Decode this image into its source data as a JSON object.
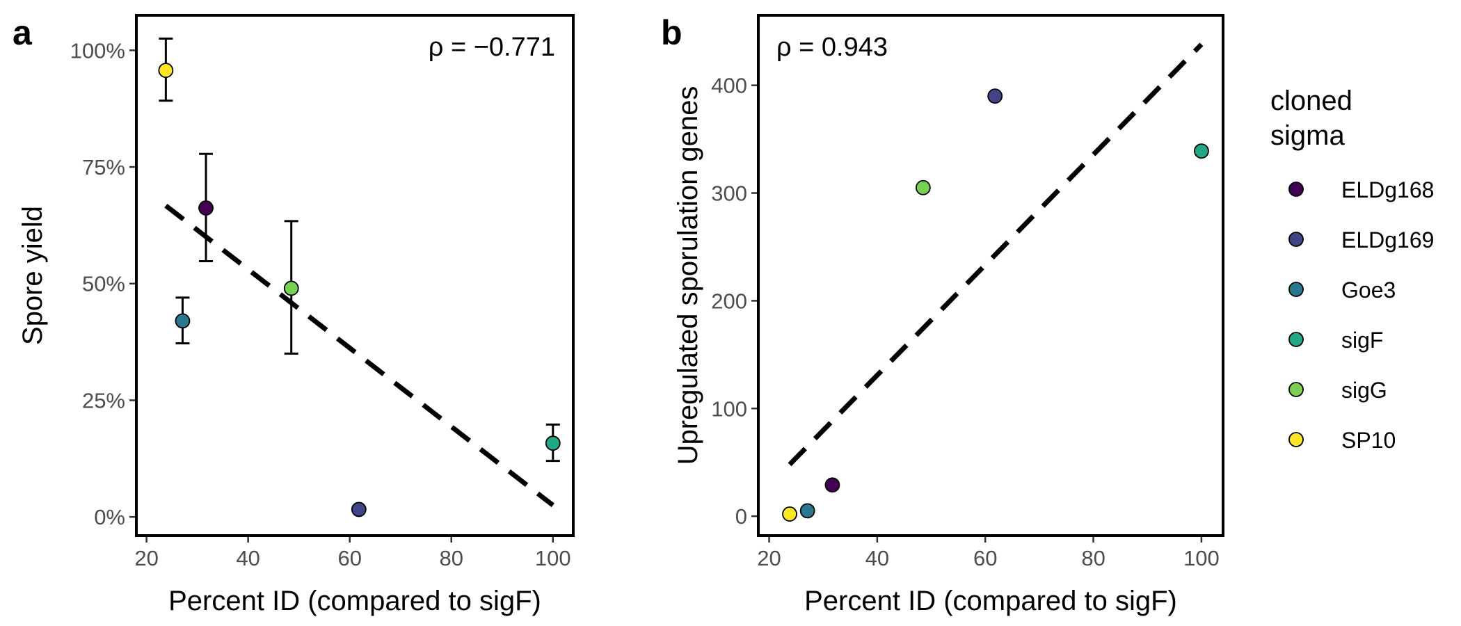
{
  "chart_data": [
    {
      "type": "scatter",
      "panel_label": "a",
      "xlabel": "Percent ID (compared to sigF)",
      "ylabel": "Spore yield",
      "xlim": [
        18,
        104
      ],
      "ylim": [
        -0.04,
        1.075
      ],
      "xticks": [
        20,
        40,
        60,
        80,
        100
      ],
      "xtick_labels": [
        "20",
        "40",
        "60",
        "80",
        "100"
      ],
      "yticks": [
        0,
        0.25,
        0.5,
        0.75,
        1.0
      ],
      "ytick_labels": [
        "0%",
        "25%",
        "50%",
        "75%",
        "100%"
      ],
      "annotation": {
        "text": "ρ = −0.771",
        "position": "top-right"
      },
      "grid": false,
      "points": [
        {
          "name": "ELDg168",
          "x": 31.7,
          "y": 0.662,
          "err_low": 0.548,
          "err_high": 0.778,
          "color": "#440154"
        },
        {
          "name": "ELDg169",
          "x": 61.8,
          "y": 0.016,
          "color": "#414487"
        },
        {
          "name": "Goe3",
          "x": 27.1,
          "y": 0.42,
          "err_low": 0.372,
          "err_high": 0.47,
          "color": "#2A788E"
        },
        {
          "name": "sigF",
          "x": 100,
          "y": 0.158,
          "err_low": 0.12,
          "err_high": 0.198,
          "color": "#22A884"
        },
        {
          "name": "sigG",
          "x": 48.5,
          "y": 0.49,
          "err_low": 0.35,
          "err_high": 0.634,
          "color": "#7AD151"
        },
        {
          "name": "SP10",
          "x": 23.8,
          "y": 0.957,
          "err_low": 0.892,
          "err_high": 1.025,
          "color": "#FDE725"
        }
      ],
      "trend_line": {
        "style": "dashed",
        "x": [
          23.8,
          100
        ],
        "y": [
          0.667,
          0.025
        ]
      }
    },
    {
      "type": "scatter",
      "panel_label": "b",
      "xlabel": "Percent ID (compared to sigF)",
      "ylabel": "Upregulated sporulation genes",
      "xlim": [
        18,
        104
      ],
      "ylim": [
        -18,
        465
      ],
      "xticks": [
        20,
        40,
        60,
        80,
        100
      ],
      "xtick_labels": [
        "20",
        "40",
        "60",
        "80",
        "100"
      ],
      "yticks": [
        0,
        100,
        200,
        300,
        400
      ],
      "ytick_labels": [
        "0",
        "100",
        "200",
        "300",
        "400"
      ],
      "annotation": {
        "text": "ρ = 0.943",
        "position": "top-left"
      },
      "grid": false,
      "points": [
        {
          "name": "ELDg168",
          "x": 31.7,
          "y": 29,
          "color": "#440154"
        },
        {
          "name": "ELDg169",
          "x": 61.8,
          "y": 390,
          "color": "#414487"
        },
        {
          "name": "Goe3",
          "x": 27.1,
          "y": 5,
          "color": "#2A788E"
        },
        {
          "name": "sigF",
          "x": 100,
          "y": 339,
          "color": "#22A884"
        },
        {
          "name": "sigG",
          "x": 48.5,
          "y": 305,
          "color": "#7AD151"
        },
        {
          "name": "SP10",
          "x": 23.8,
          "y": 2,
          "color": "#FDE725"
        }
      ],
      "trend_line": {
        "style": "dashed",
        "x": [
          23.8,
          100
        ],
        "y": [
          48,
          438
        ]
      }
    }
  ],
  "legend": {
    "title_lines": [
      "cloned",
      "sigma"
    ],
    "placement": "right",
    "items": [
      {
        "label": "ELDg168",
        "color": "#440154"
      },
      {
        "label": "ELDg169",
        "color": "#414487"
      },
      {
        "label": "Goe3",
        "color": "#2A788E"
      },
      {
        "label": "sigF",
        "color": "#22A884"
      },
      {
        "label": "sigG",
        "color": "#7AD151"
      },
      {
        "label": "SP10",
        "color": "#FDE725"
      }
    ]
  }
}
